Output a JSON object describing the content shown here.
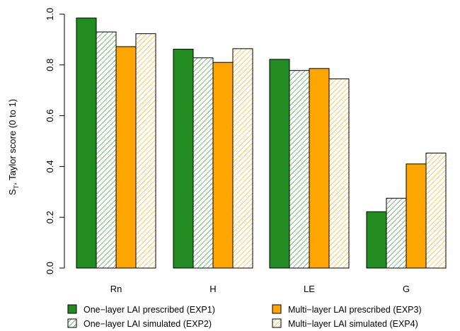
{
  "chart_data": {
    "type": "bar",
    "ylabel_main": "S",
    "ylabel_sub": "T",
    "ylabel_rest": ", Taylor score (0 to 1)",
    "ylim": [
      0,
      1
    ],
    "yticks": [
      "0.0",
      "0.2",
      "0.4",
      "0.6",
      "0.8",
      "1.0"
    ],
    "categories": [
      "Rn",
      "H",
      "LE",
      "G"
    ],
    "grid": false,
    "legend_position": "bottom",
    "series": [
      {
        "name": "One−layer LAI prescribed (EXP1)",
        "color": "#228B22",
        "pattern": "solid",
        "values": [
          0.985,
          0.862,
          0.822,
          0.222
        ]
      },
      {
        "name": "One−layer LAI simulated (EXP2)",
        "color": "#228B22",
        "pattern": "hatched",
        "values": [
          0.93,
          0.828,
          0.778,
          0.275
        ]
      },
      {
        "name": "Multi−layer LAI prescribed (EXP3)",
        "color": "#FFA500",
        "pattern": "solid",
        "values": [
          0.872,
          0.81,
          0.786,
          0.41
        ]
      },
      {
        "name": "Multi−layer LAI simulated (EXP4)",
        "color": "#FFA500",
        "pattern": "hatched",
        "values": [
          0.923,
          0.864,
          0.745,
          0.453
        ]
      }
    ]
  }
}
